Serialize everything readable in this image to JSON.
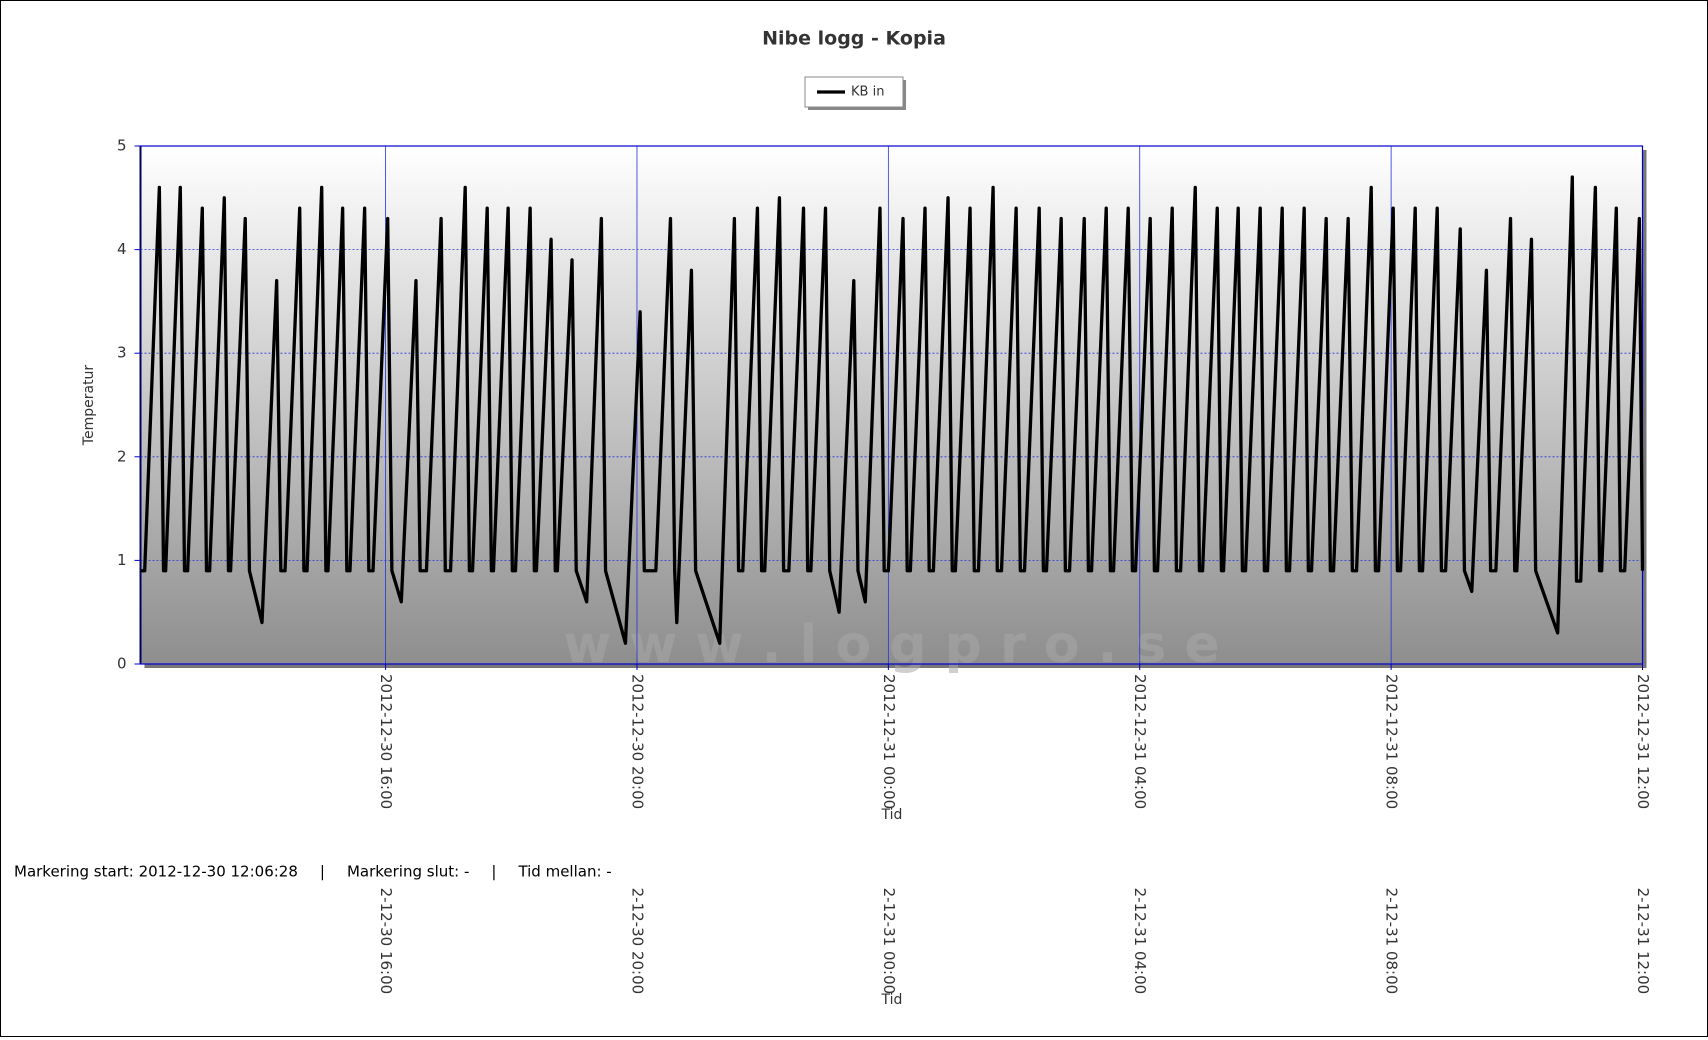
{
  "chart_data": {
    "type": "line",
    "title": "Nibe logg - Kopia",
    "x_label": "Tid",
    "y_label": "Temperatur",
    "watermark": "w w w . l o g p r o . s e",
    "legend": "top",
    "grid": true,
    "xlim": [
      "2012-12-30 12:06",
      "2012-12-31 12:00"
    ],
    "xticks": [
      "2012-12-30 16:00",
      "2012-12-30 20:00",
      "2012-12-31 00:00",
      "2012-12-31 04:00",
      "2012-12-31 08:00",
      "2012-12-31 12:00"
    ],
    "ylim": [
      0,
      5
    ],
    "yticks": [
      0,
      1,
      2,
      3,
      4,
      5
    ],
    "x": [
      "2012-12-30 12:06",
      "2012-12-30 12:10",
      "2012-12-30 12:24",
      "2012-12-30 12:28",
      "2012-12-30 12:30",
      "2012-12-30 12:44",
      "2012-12-30 12:48",
      "2012-12-30 12:51",
      "2012-12-30 13:05",
      "2012-12-30 13:09",
      "2012-12-30 13:12",
      "2012-12-30 13:26",
      "2012-12-30 13:30",
      "2012-12-30 13:32",
      "2012-12-30 13:46",
      "2012-12-30 13:50",
      "2012-12-30 14:02",
      "2012-12-30 14:16",
      "2012-12-30 14:20",
      "2012-12-30 14:24",
      "2012-12-30 14:38",
      "2012-12-30 14:42",
      "2012-12-30 14:45",
      "2012-12-30 14:59",
      "2012-12-30 15:03",
      "2012-12-30 15:05",
      "2012-12-30 15:19",
      "2012-12-30 15:23",
      "2012-12-30 15:26",
      "2012-12-30 15:40",
      "2012-12-30 15:44",
      "2012-12-30 15:48",
      "2012-12-30 16:02",
      "2012-12-30 16:06",
      "2012-12-30 16:15",
      "2012-12-30 16:29",
      "2012-12-30 16:33",
      "2012-12-30 16:39",
      "2012-12-30 16:53",
      "2012-12-30 16:57",
      "2012-12-30 17:02",
      "2012-12-30 17:16",
      "2012-12-30 17:20",
      "2012-12-30 17:23",
      "2012-12-30 17:37",
      "2012-12-30 17:41",
      "2012-12-30 17:43",
      "2012-12-30 17:57",
      "2012-12-30 18:01",
      "2012-12-30 18:04",
      "2012-12-30 18:18",
      "2012-12-30 18:22",
      "2012-12-30 18:24",
      "2012-12-30 18:38",
      "2012-12-30 18:42",
      "2012-12-30 18:44",
      "2012-12-30 18:58",
      "2012-12-30 19:02",
      "2012-12-30 19:12",
      "2012-12-30 19:26",
      "2012-12-30 19:30",
      "2012-12-30 19:49",
      "2012-12-30 20:03",
      "2012-12-30 20:07",
      "2012-12-30 20:18",
      "2012-12-30 20:32",
      "2012-12-30 20:36",
      "2012-12-30 20:38",
      "2012-12-30 20:52",
      "2012-12-30 20:56",
      "2012-12-30 21:19",
      "2012-12-30 21:33",
      "2012-12-30 21:37",
      "2012-12-30 21:41",
      "2012-12-30 21:55",
      "2012-12-30 21:59",
      "2012-12-30 22:02",
      "2012-12-30 22:16",
      "2012-12-30 22:20",
      "2012-12-30 22:25",
      "2012-12-30 22:39",
      "2012-12-30 22:43",
      "2012-12-30 22:46",
      "2012-12-30 23:00",
      "2012-12-30 23:04",
      "2012-12-30 23:13",
      "2012-12-30 23:27",
      "2012-12-30 23:31",
      "2012-12-30 23:38",
      "2012-12-30 23:52",
      "2012-12-30 23:56",
      "2012-12-31 00:00",
      "2012-12-31 00:14",
      "2012-12-31 00:18",
      "2012-12-31 00:21",
      "2012-12-31 00:35",
      "2012-12-31 00:39",
      "2012-12-31 00:43",
      "2012-12-31 00:57",
      "2012-12-31 01:01",
      "2012-12-31 01:04",
      "2012-12-31 01:18",
      "2012-12-31 01:22",
      "2012-12-31 01:26",
      "2012-12-31 01:40",
      "2012-12-31 01:44",
      "2012-12-31 01:48",
      "2012-12-31 02:02",
      "2012-12-31 02:06",
      "2012-12-31 02:10",
      "2012-12-31 02:24",
      "2012-12-31 02:28",
      "2012-12-31 02:31",
      "2012-12-31 02:45",
      "2012-12-31 02:49",
      "2012-12-31 02:53",
      "2012-12-31 03:07",
      "2012-12-31 03:11",
      "2012-12-31 03:14",
      "2012-12-31 03:28",
      "2012-12-31 03:32",
      "2012-12-31 03:35",
      "2012-12-31 03:49",
      "2012-12-31 03:53",
      "2012-12-31 03:56",
      "2012-12-31 04:10",
      "2012-12-31 04:14",
      "2012-12-31 04:17",
      "2012-12-31 04:31",
      "2012-12-31 04:35",
      "2012-12-31 04:39",
      "2012-12-31 04:53",
      "2012-12-31 04:57",
      "2012-12-31 05:00",
      "2012-12-31 05:14",
      "2012-12-31 05:18",
      "2012-12-31 05:20",
      "2012-12-31 05:34",
      "2012-12-31 05:38",
      "2012-12-31 05:41",
      "2012-12-31 05:55",
      "2012-12-31 05:59",
      "2012-12-31 06:02",
      "2012-12-31 06:16",
      "2012-12-31 06:20",
      "2012-12-31 06:23",
      "2012-12-31 06:37",
      "2012-12-31 06:41",
      "2012-12-31 06:44",
      "2012-12-31 06:58",
      "2012-12-31 07:02",
      "2012-12-31 07:05",
      "2012-12-31 07:19",
      "2012-12-31 07:23",
      "2012-12-31 07:27",
      "2012-12-31 07:41",
      "2012-12-31 07:45",
      "2012-12-31 07:48",
      "2012-12-31 08:02",
      "2012-12-31 08:06",
      "2012-12-31 08:09",
      "2012-12-31 08:23",
      "2012-12-31 08:27",
      "2012-12-31 08:30",
      "2012-12-31 08:44",
      "2012-12-31 08:48",
      "2012-12-31 08:52",
      "2012-12-31 09:06",
      "2012-12-31 09:10",
      "2012-12-31 09:17",
      "2012-12-31 09:31",
      "2012-12-31 09:35",
      "2012-12-31 09:40",
      "2012-12-31 09:54",
      "2012-12-31 09:58",
      "2012-12-31 10:00",
      "2012-12-31 10:14",
      "2012-12-31 10:18",
      "2012-12-31 10:39",
      "2012-12-31 10:53",
      "2012-12-31 10:57",
      "2012-12-31 11:01",
      "2012-12-31 11:15",
      "2012-12-31 11:19",
      "2012-12-31 11:21",
      "2012-12-31 11:35",
      "2012-12-31 11:39",
      "2012-12-31 11:43",
      "2012-12-31 11:57",
      "2012-12-31 12:00"
    ],
    "series": [
      {
        "name": "KB in",
        "color": "#000000",
        "values": [
          0.9,
          0.9,
          4.6,
          0.9,
          0.9,
          4.6,
          0.9,
          0.9,
          4.4,
          0.9,
          0.9,
          4.5,
          0.9,
          0.9,
          4.3,
          0.9,
          0.4,
          3.7,
          0.9,
          0.9,
          4.4,
          0.9,
          0.9,
          4.6,
          0.9,
          0.9,
          4.4,
          0.9,
          0.9,
          4.4,
          0.9,
          0.9,
          4.3,
          0.9,
          0.6,
          3.7,
          0.9,
          0.9,
          4.3,
          0.9,
          0.9,
          4.6,
          0.9,
          0.9,
          4.4,
          0.9,
          0.9,
          4.4,
          0.9,
          0.9,
          4.4,
          0.9,
          0.9,
          4.1,
          0.9,
          0.9,
          3.9,
          0.9,
          0.6,
          4.3,
          0.9,
          0.2,
          3.4,
          0.9,
          0.9,
          4.3,
          0.9,
          0.4,
          3.8,
          0.9,
          0.2,
          4.3,
          0.9,
          0.9,
          4.4,
          0.9,
          0.9,
          4.5,
          0.9,
          0.9,
          4.4,
          0.9,
          0.9,
          4.4,
          0.9,
          0.5,
          3.7,
          0.9,
          0.6,
          4.4,
          0.9,
          0.9,
          4.3,
          0.9,
          0.9,
          4.4,
          0.9,
          0.9,
          4.5,
          0.9,
          0.9,
          4.4,
          0.9,
          0.9,
          4.6,
          0.9,
          0.9,
          4.4,
          0.9,
          0.9,
          4.4,
          0.9,
          0.9,
          4.3,
          0.9,
          0.9,
          4.3,
          0.9,
          0.9,
          4.4,
          0.9,
          0.9,
          4.4,
          0.9,
          0.9,
          4.3,
          0.9,
          0.9,
          4.4,
          0.9,
          0.9,
          4.6,
          0.9,
          0.9,
          4.4,
          0.9,
          0.9,
          4.4,
          0.9,
          0.9,
          4.4,
          0.9,
          0.9,
          4.4,
          0.9,
          0.9,
          4.4,
          0.9,
          0.9,
          4.3,
          0.9,
          0.9,
          4.3,
          0.9,
          0.9,
          4.6,
          0.9,
          0.9,
          4.4,
          0.9,
          0.9,
          4.4,
          0.9,
          0.9,
          4.4,
          0.9,
          0.9,
          4.2,
          0.9,
          0.7,
          3.8,
          0.9,
          0.9,
          4.3,
          0.9,
          0.9,
          4.1,
          0.9,
          0.3,
          4.7,
          0.8,
          0.8,
          4.6,
          0.9,
          0.9,
          4.4,
          0.9,
          0.9,
          4.3,
          0.9
        ]
      }
    ]
  },
  "status": {
    "items": [
      "Markering start: 2012-12-30 12:06:28",
      "Markering slut: -",
      "Tid mellan: -"
    ],
    "separator": "|"
  }
}
